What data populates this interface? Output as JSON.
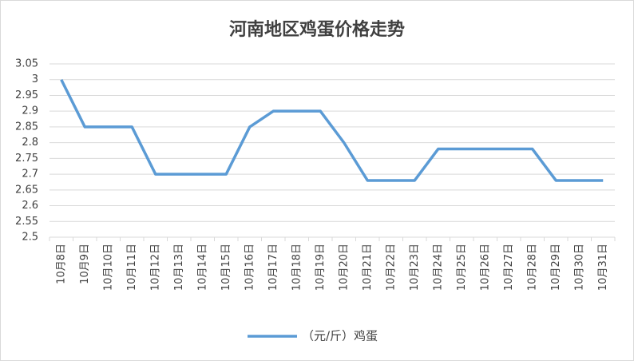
{
  "chart_data": {
    "type": "line",
    "title": "河南地区鸡蛋价格走势",
    "categories": [
      "10月8日",
      "10月9日",
      "10月10日",
      "10月11日",
      "10月12日",
      "10月13日",
      "10月14日",
      "10月15日",
      "10月16日",
      "10月17日",
      "10月18日",
      "10月19日",
      "10月20日",
      "10月21日",
      "10月22日",
      "10月23日",
      "10月24日",
      "10月25日",
      "10月26日",
      "10月27日",
      "10月28日",
      "10月29日",
      "10月30日",
      "10月31日"
    ],
    "series": [
      {
        "name": "（元/斤）鸡蛋",
        "color": "#5b9bd5",
        "values": [
          3,
          2.85,
          2.85,
          2.85,
          2.7,
          2.7,
          2.7,
          2.7,
          2.85,
          2.9,
          2.9,
          2.9,
          2.8,
          2.68,
          2.68,
          2.68,
          2.78,
          2.78,
          2.78,
          2.78,
          2.78,
          2.68,
          2.68,
          2.68
        ]
      }
    ],
    "ylim": [
      2.5,
      3.05
    ],
    "yticks": [
      2.5,
      2.55,
      2.6,
      2.65,
      2.7,
      2.75,
      2.8,
      2.85,
      2.9,
      2.95,
      3,
      3.05
    ],
    "grid": true,
    "legend": "bottom"
  }
}
